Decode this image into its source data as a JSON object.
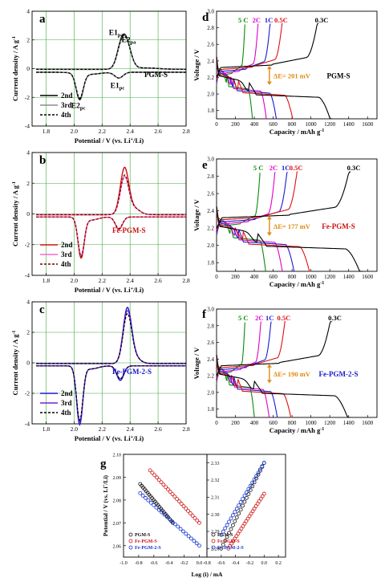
{
  "chart_data": [
    {
      "panel": "a",
      "type": "line",
      "xlabel": "Potential / V (vs. Li+/Li)",
      "ylabel": "Current density / A g-1",
      "xlim": [
        1.7,
        2.8
      ],
      "ylim": [
        -4,
        4
      ],
      "xticks": [
        1.8,
        2.0,
        2.2,
        2.4,
        2.6,
        2.8
      ],
      "yticks": [
        -4,
        -2,
        0,
        2,
        4
      ],
      "sample": "PGM-S",
      "peak_labels": [
        "E1pa",
        "E2pa",
        "E1pc",
        "E2pc"
      ],
      "legend": [
        "2nd",
        "3rd",
        "4th"
      ],
      "series": [
        {
          "name": "2nd",
          "peaks": [
            [
              2.04,
              -1.8
            ],
            [
              2.32,
              -0.6
            ],
            [
              2.33,
              1.4
            ],
            [
              2.37,
              1.9
            ]
          ]
        },
        {
          "name": "3rd",
          "peaks": [
            [
              2.04,
              -1.7
            ],
            [
              2.32,
              -0.6
            ],
            [
              2.33,
              1.3
            ],
            [
              2.37,
              1.85
            ]
          ]
        },
        {
          "name": "4th",
          "peaks": [
            [
              2.04,
              -1.7
            ],
            [
              2.32,
              -0.6
            ],
            [
              2.33,
              1.3
            ],
            [
              2.37,
              1.85
            ]
          ]
        }
      ]
    },
    {
      "panel": "b",
      "type": "line",
      "xlabel": "Potential / V (vs. Li+/Li)",
      "ylabel": "Current density / A g-1",
      "xlim": [
        1.7,
        2.8
      ],
      "ylim": [
        -4,
        4
      ],
      "xticks": [
        1.8,
        2.0,
        2.2,
        2.4,
        2.6,
        2.8
      ],
      "yticks": [
        -4,
        -2,
        0,
        2,
        4
      ],
      "sample": "Fe-PGM-S",
      "legend": [
        "2nd",
        "3rd",
        "4th"
      ],
      "series": [
        {
          "name": "2nd",
          "peaks": [
            [
              2.05,
              -2.6
            ],
            [
              2.32,
              -0.95
            ],
            [
              2.36,
              3.0
            ]
          ]
        },
        {
          "name": "3rd",
          "peaks": [
            [
              2.05,
              -2.4
            ],
            [
              2.32,
              -0.9
            ],
            [
              2.36,
              2.4
            ]
          ]
        },
        {
          "name": "4th",
          "peaks": [
            [
              2.05,
              -2.5
            ],
            [
              2.32,
              -0.9
            ],
            [
              2.36,
              2.5
            ]
          ]
        }
      ]
    },
    {
      "panel": "c",
      "type": "line",
      "xlabel": "Potential / V (vs. Li+/Li)",
      "ylabel": "Current density / A g-1",
      "xlim": [
        1.7,
        2.8
      ],
      "ylim": [
        -4,
        4
      ],
      "xticks": [
        1.8,
        2.0,
        2.2,
        2.4,
        2.6,
        2.8
      ],
      "yticks": [
        -4,
        -2,
        0,
        2,
        4
      ],
      "sample": "Fe-PGM-2-S",
      "legend": [
        "2nd",
        "3rd",
        "4th"
      ],
      "series": [
        {
          "name": "2nd",
          "peaks": [
            [
              2.04,
              -3.8
            ],
            [
              2.33,
              -1.1
            ],
            [
              2.38,
              3.5
            ]
          ]
        },
        {
          "name": "3rd",
          "peaks": [
            [
              2.04,
              -3.6
            ],
            [
              2.33,
              -1.0
            ],
            [
              2.38,
              3.3
            ]
          ]
        },
        {
          "name": "4th",
          "peaks": [
            [
              2.04,
              -3.5
            ],
            [
              2.33,
              -1.0
            ],
            [
              2.38,
              3.1
            ]
          ]
        }
      ]
    },
    {
      "panel": "d",
      "type": "line",
      "xlabel": "Capacity / mAh g-1",
      "ylabel": "Voltage / V",
      "xlim": [
        0,
        1700
      ],
      "ylim": [
        1.7,
        3.0
      ],
      "xticks": [
        0,
        200,
        400,
        600,
        800,
        1000,
        1200,
        1400,
        1600
      ],
      "yticks": [
        1.8,
        2.0,
        2.2,
        2.4,
        2.6,
        2.8,
        3.0
      ],
      "sample": "PGM-S",
      "delta_e": "ΔE= 201 mV",
      "rates": [
        "5 C",
        "2C",
        "1C",
        "0.5C",
        "0.3C"
      ],
      "series": [
        {
          "name": "5 C",
          "color": "#0a8a0a",
          "discharge_capacity": 380,
          "charge_capacity": 300
        },
        {
          "name": "2C",
          "color": "#e000c8",
          "discharge_capacity": 530,
          "charge_capacity": 440
        },
        {
          "name": "1C",
          "color": "#1a1ad0",
          "discharge_capacity": 640,
          "charge_capacity": 570
        },
        {
          "name": "0.5C",
          "color": "#e01010",
          "discharge_capacity": 820,
          "charge_capacity": 700
        },
        {
          "name": "0.3C",
          "color": "#000000",
          "discharge_capacity": 1230,
          "charge_capacity": 1080
        }
      ]
    },
    {
      "panel": "e",
      "type": "line",
      "xlabel": "Capacity / mAh g-1",
      "ylabel": "Voltage / V",
      "xlim": [
        0,
        1700
      ],
      "ylim": [
        1.7,
        3.0
      ],
      "xticks": [
        0,
        200,
        400,
        600,
        800,
        1000,
        1200,
        1400,
        1600
      ],
      "yticks": [
        1.8,
        2.0,
        2.2,
        2.4,
        2.6,
        2.8,
        3.0
      ],
      "sample": "Fe-PGM-S",
      "delta_e": "ΔE= 177 mV",
      "rates": [
        "5 C",
        "2C",
        "1C",
        "0.5C",
        "0.3C"
      ],
      "series": [
        {
          "name": "5 C",
          "color": "#0a8a0a",
          "discharge_capacity": 520,
          "charge_capacity": 460
        },
        {
          "name": "2C",
          "color": "#e000c8",
          "discharge_capacity": 700,
          "charge_capacity": 620
        },
        {
          "name": "1C",
          "color": "#1a1ad0",
          "discharge_capacity": 830,
          "charge_capacity": 750
        },
        {
          "name": "0.5C",
          "color": "#e01010",
          "discharge_capacity": 1000,
          "charge_capacity": 860
        },
        {
          "name": "0.3C",
          "color": "#000000",
          "discharge_capacity": 1550,
          "charge_capacity": 1420
        }
      ]
    },
    {
      "panel": "f",
      "type": "line",
      "xlabel": "Capacity / mAh g-1",
      "ylabel": "Voltage / V",
      "xlim": [
        0,
        1700
      ],
      "ylim": [
        1.7,
        3.0
      ],
      "xticks": [
        0,
        200,
        400,
        600,
        800,
        1000,
        1200,
        1400,
        1600
      ],
      "yticks": [
        1.8,
        2.0,
        2.2,
        2.4,
        2.6,
        2.8,
        3.0
      ],
      "sample": "Fe-PGM-2-S",
      "delta_e": "ΔE= 190 mV",
      "rates": [
        "5 C",
        "2C",
        "1C",
        "0.5C",
        "0.3C"
      ],
      "series": [
        {
          "name": "5 C",
          "color": "#0a8a0a",
          "discharge_capacity": 400,
          "charge_capacity": 300
        },
        {
          "name": "2C",
          "color": "#e000c8",
          "discharge_capacity": 560,
          "charge_capacity": 470
        },
        {
          "name": "1C",
          "color": "#1a1ad0",
          "discharge_capacity": 650,
          "charge_capacity": 580
        },
        {
          "name": "0.5C",
          "color": "#e01010",
          "discharge_capacity": 800,
          "charge_capacity": 730
        },
        {
          "name": "0.3C",
          "color": "#000000",
          "discharge_capacity": 1420,
          "charge_capacity": 1220
        }
      ]
    },
    {
      "panel": "g",
      "type": "scatter",
      "xlabel": "Log (i) / mA",
      "ylabel": "Potential / V (vs. Li+/Li)",
      "left": {
        "xlim": [
          -1.0,
          0.1
        ],
        "ylim": [
          2.055,
          2.1
        ],
        "xticks": [
          -1.0,
          -0.8,
          -0.6,
          -0.4,
          -0.2,
          0.0
        ],
        "yticks": [
          2.06,
          2.07,
          2.08,
          2.09,
          2.1
        ],
        "series": [
          {
            "name": "PGM-S",
            "color": "#111111",
            "x_range": [
              -0.78,
              -0.35
            ],
            "y_range": [
              2.087,
              2.07
            ]
          },
          {
            "name": "Fe-PGM-S",
            "color": "#cc1111",
            "x_range": [
              -0.65,
              0.0
            ],
            "y_range": [
              2.093,
              2.07
            ]
          },
          {
            "name": "Fe-PGM-2-S",
            "color": "#1133cc",
            "x_range": [
              -0.78,
              0.0
            ],
            "y_range": [
              2.083,
              2.06
            ]
          }
        ]
      },
      "right": {
        "xlim": [
          -0.8,
          0.3
        ],
        "ylim": [
          2.275,
          2.335
        ],
        "xticks": [
          -0.8,
          -0.6,
          -0.4,
          -0.2,
          0.0,
          0.2
        ],
        "yticks": [
          2.28,
          2.29,
          2.3,
          2.31,
          2.32,
          2.33
        ],
        "series": [
          {
            "name": "PGM-S",
            "color": "#111111",
            "x_range": [
              -0.6,
              0.0
            ],
            "y_range": [
              2.28,
              2.33
            ]
          },
          {
            "name": "Fe-PGM-S",
            "color": "#cc1111",
            "x_range": [
              -0.5,
              0.0
            ],
            "y_range": [
              2.28,
              2.312
            ]
          },
          {
            "name": "Fe-PGM-2-S",
            "color": "#1133cc",
            "x_range": [
              -0.6,
              0.0
            ],
            "y_range": [
              2.288,
              2.33
            ]
          }
        ]
      },
      "legend": [
        "PGM-S",
        "Fe-PGM-S",
        "Fe-PGM-2-S"
      ]
    }
  ]
}
